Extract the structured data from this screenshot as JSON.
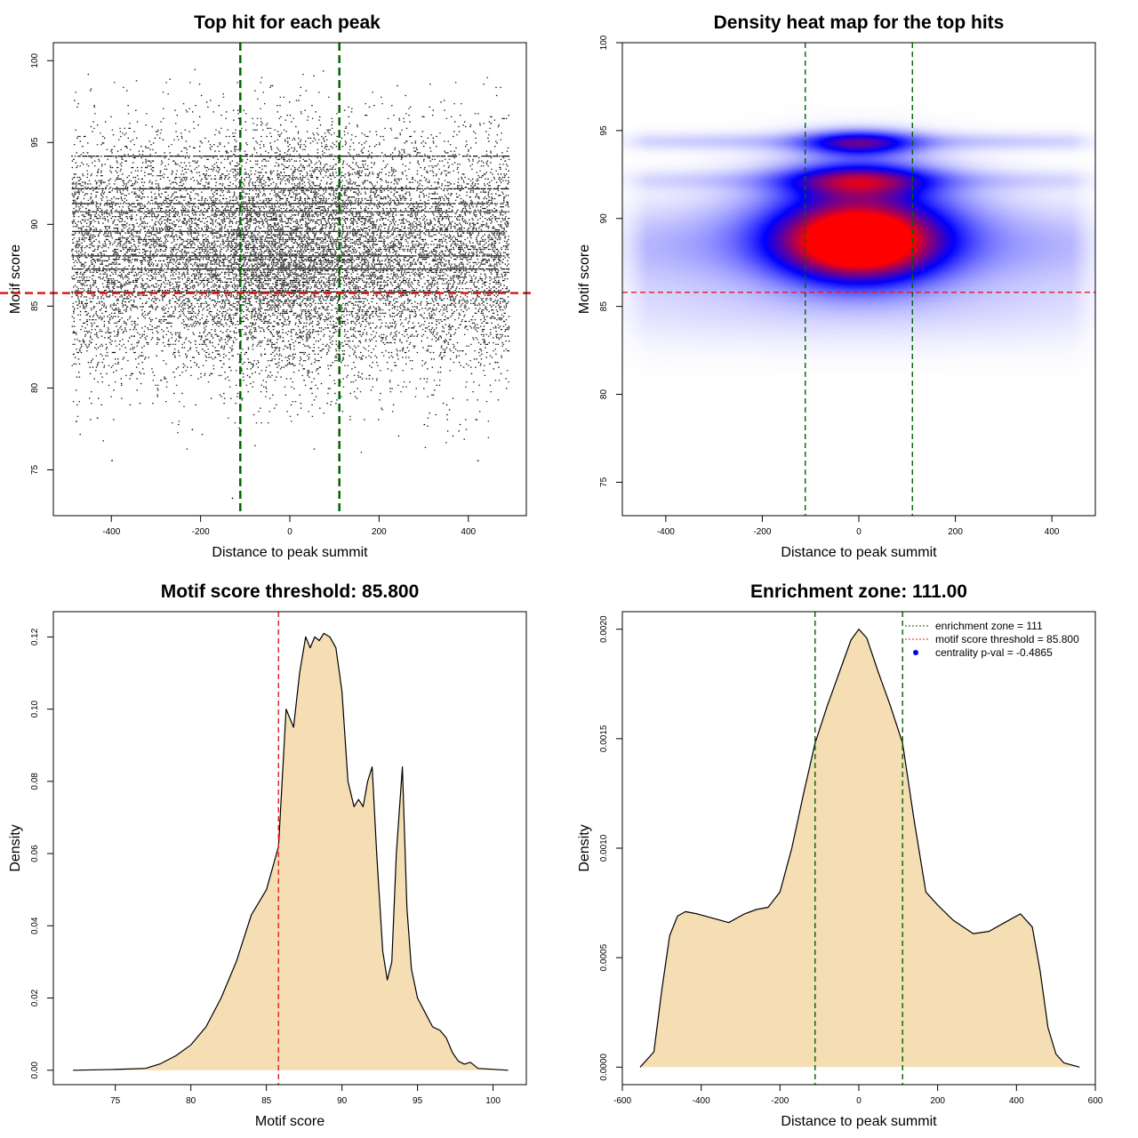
{
  "figure_title": "",
  "chart_data": [
    {
      "id": "scatter",
      "type": "scatter",
      "title": "Top hit for each peak",
      "xlabel": "Distance to peak summit",
      "ylabel": "Motif score",
      "xlim": [
        -530,
        530
      ],
      "ylim": [
        72.2,
        101.1
      ],
      "xticks": [
        -400,
        -200,
        0,
        200,
        400
      ],
      "yticks": [
        75,
        80,
        85,
        90,
        95,
        100
      ],
      "x_range_of_points": [
        -490,
        490
      ],
      "approx_point_count": 20000,
      "dense_score_levels": [
        94.2,
        92.2,
        91.3,
        90.8,
        89.6,
        88.1,
        87.3,
        85.9
      ],
      "sparse_outliers": [
        [
          -400,
          75.6
        ],
        [
          -480,
          78.0
        ],
        [
          420,
          75.6
        ],
        [
          -130,
          73.3
        ],
        [
          -220,
          77.5
        ],
        [
          300,
          77.8
        ]
      ],
      "enrichment_zone_lines": [
        -111,
        111
      ],
      "threshold_line": 85.8,
      "colors": {
        "points": "#000000",
        "zone": "#006400",
        "threshold": "#e31a1c"
      }
    },
    {
      "id": "heatmap",
      "type": "heatmap",
      "title": "Density heat map for the top hits",
      "xlabel": "Distance to peak summit",
      "ylabel": "Motif score",
      "xlim": [
        -490,
        490
      ],
      "ylim": [
        73.1,
        100.0
      ],
      "xticks": [
        -400,
        -200,
        0,
        200,
        400
      ],
      "yticks": [
        75,
        80,
        85,
        90,
        95,
        100
      ],
      "density_blobs": [
        {
          "x": 0,
          "y": 94.3,
          "sx": 80,
          "sy": 0.5,
          "w": 0.55
        },
        {
          "x": 0,
          "y": 92.2,
          "sx": 100,
          "sy": 0.7,
          "w": 0.55
        },
        {
          "x": 0,
          "y": 88.6,
          "sx": 110,
          "sy": 1.5,
          "w": 1.0
        },
        {
          "x": 0,
          "y": 90.2,
          "sx": 150,
          "sy": 2.0,
          "w": 0.35
        },
        {
          "x": 0,
          "y": 94.4,
          "sx": 500,
          "sy": 0.35,
          "w": 0.12
        },
        {
          "x": 0,
          "y": 92.2,
          "sx": 500,
          "sy": 0.4,
          "w": 0.1
        },
        {
          "x": 0,
          "y": 88.5,
          "sx": 500,
          "sy": 1.6,
          "w": 0.2
        },
        {
          "x": 0,
          "y": 85.0,
          "sx": 500,
          "sy": 1.5,
          "w": 0.08
        }
      ],
      "enrichment_zone_lines": [
        -111,
        111
      ],
      "threshold_line": 85.8,
      "colors": {
        "low": "#ffffff",
        "mid": "#0000ff",
        "high": "#ff0000",
        "zone": "#006400",
        "threshold": "#e31a1c"
      }
    },
    {
      "id": "score-density",
      "type": "area",
      "title": "Motif score threshold: 85.800",
      "xlabel": "Motif score",
      "ylabel": "Density",
      "xlim": [
        70.9,
        102.2
      ],
      "ylim": [
        -0.004,
        0.127
      ],
      "xticks": [
        75,
        80,
        85,
        90,
        95,
        100
      ],
      "yticks": [
        0.0,
        0.02,
        0.04,
        0.06,
        0.08,
        0.1,
        0.12
      ],
      "ytick_labels": [
        "0.00",
        "0.02",
        "0.04",
        "0.06",
        "0.08",
        "0.10",
        "0.12"
      ],
      "x": [
        72.2,
        75,
        77,
        78,
        79,
        80,
        81,
        82,
        83,
        84,
        85,
        85.8,
        86.3,
        86.8,
        87.2,
        87.6,
        87.9,
        88.2,
        88.5,
        88.8,
        89.2,
        89.6,
        90.0,
        90.4,
        90.8,
        91.1,
        91.4,
        91.7,
        92.0,
        92.3,
        92.7,
        93.0,
        93.3,
        93.6,
        94.0,
        94.3,
        94.6,
        95.0,
        95.5,
        96.0,
        96.5,
        96.9,
        97.3,
        97.7,
        98.1,
        98.5,
        99.0,
        101.0
      ],
      "y": [
        0.0,
        0.0002,
        0.0005,
        0.0018,
        0.004,
        0.007,
        0.012,
        0.02,
        0.03,
        0.043,
        0.05,
        0.062,
        0.1,
        0.095,
        0.11,
        0.12,
        0.117,
        0.12,
        0.119,
        0.121,
        0.12,
        0.117,
        0.105,
        0.08,
        0.073,
        0.075,
        0.073,
        0.08,
        0.084,
        0.06,
        0.033,
        0.025,
        0.03,
        0.06,
        0.084,
        0.045,
        0.028,
        0.02,
        0.016,
        0.012,
        0.011,
        0.009,
        0.005,
        0.0025,
        0.0017,
        0.0022,
        0.0005,
        0.0
      ],
      "threshold_line": 85.8,
      "colors": {
        "fill": "#f5deb3",
        "line": "#000000",
        "threshold": "#e31a1c"
      }
    },
    {
      "id": "position-density",
      "type": "area",
      "title": "Enrichment zone: 111.00",
      "xlabel": "Distance to peak summit",
      "ylabel": "Density",
      "xlim": [
        -600,
        600
      ],
      "ylim": [
        -8e-05,
        0.00208
      ],
      "xticks": [
        -600,
        -400,
        -200,
        0,
        200,
        400,
        600
      ],
      "yticks": [
        0.0,
        0.0005,
        0.001,
        0.0015,
        0.002
      ],
      "ytick_labels": [
        "0.0000",
        "0.0005",
        "0.0010",
        "0.0015",
        "0.0020"
      ],
      "x": [
        -555,
        -520,
        -500,
        -480,
        -460,
        -440,
        -410,
        -370,
        -330,
        -290,
        -260,
        -230,
        -200,
        -170,
        -140,
        -111,
        -80,
        -50,
        -20,
        0,
        20,
        50,
        80,
        111,
        140,
        170,
        200,
        240,
        290,
        330,
        370,
        410,
        440,
        460,
        480,
        500,
        520,
        560
      ],
      "y": [
        0.0,
        7e-05,
        0.00035,
        0.0006,
        0.00069,
        0.00071,
        0.0007,
        0.00068,
        0.00066,
        0.0007,
        0.00072,
        0.00073,
        0.0008,
        0.001,
        0.00125,
        0.00148,
        0.00165,
        0.0018,
        0.00195,
        0.002,
        0.00196,
        0.0018,
        0.00165,
        0.00148,
        0.00113,
        0.0008,
        0.00074,
        0.00067,
        0.00061,
        0.00062,
        0.00066,
        0.0007,
        0.00064,
        0.00044,
        0.00018,
        6e-05,
        2e-05,
        0.0
      ],
      "enrichment_zone_lines": [
        -111,
        111
      ],
      "legend_position": "top-right",
      "legend": [
        {
          "label": "enrichment zone = 111",
          "style": "dotted-line",
          "color": "#006400"
        },
        {
          "label": "motif score threshold = 85.800",
          "style": "dotted-line",
          "color": "#e31a1c"
        },
        {
          "label": "centrality p-val = -0.4865",
          "style": "point",
          "color": "#0000ff"
        }
      ],
      "colors": {
        "fill": "#f5deb3",
        "line": "#000000",
        "zone": "#006400"
      }
    }
  ]
}
